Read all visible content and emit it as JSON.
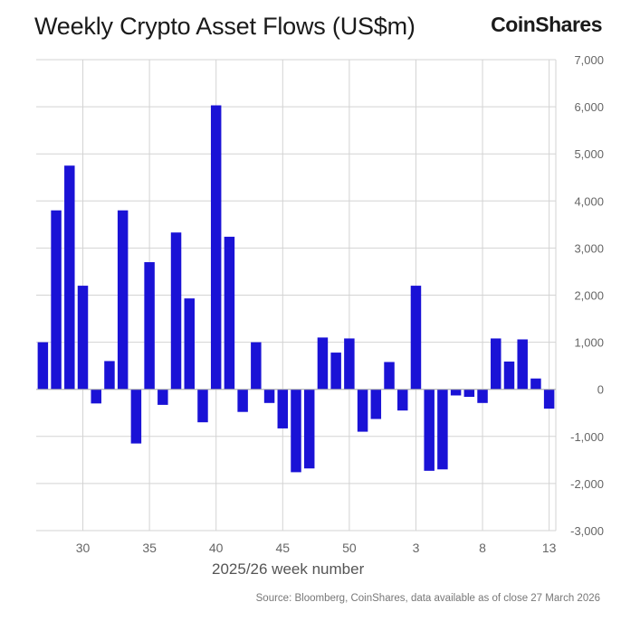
{
  "header": {
    "title": "Weekly Crypto Asset Flows (US$m)",
    "brand": "CoinShares"
  },
  "footer": {
    "source": "Source: Bloomberg, CoinShares, data available as of close 27 March 2026"
  },
  "colors": {
    "bar": "#1a12d6",
    "grid": "#d3d3d3",
    "axis_text": "#666666",
    "zero_line": "#b0b0b0"
  },
  "chart_data": {
    "type": "bar",
    "title": "Weekly Crypto Asset Flows (US$m)",
    "xlabel": "2025/26 week number",
    "ylabel": "",
    "ylim": [
      -3000,
      7000
    ],
    "yticks": [
      -3000,
      -2000,
      -1000,
      0,
      1000,
      2000,
      3000,
      4000,
      5000,
      6000,
      7000
    ],
    "ytick_labels": [
      "-3,000",
      "-2,000",
      "-1,000",
      "0",
      "1,000",
      "2,000",
      "3,000",
      "4,000",
      "5,000",
      "6,000",
      "7,000"
    ],
    "categories": [
      27,
      28,
      29,
      30,
      31,
      32,
      33,
      34,
      35,
      36,
      37,
      38,
      39,
      40,
      41,
      42,
      43,
      44,
      45,
      46,
      47,
      48,
      49,
      50,
      51,
      52,
      1,
      2,
      3,
      4,
      5,
      6,
      7,
      8,
      9,
      10,
      11,
      12,
      13
    ],
    "xtick_labels": [
      "30",
      "35",
      "40",
      "45",
      "50",
      "3",
      "8",
      "13"
    ],
    "xtick_weeks": [
      30,
      35,
      40,
      45,
      50,
      3,
      8,
      13
    ],
    "values": [
      1000,
      3800,
      4750,
      2200,
      -300,
      600,
      3800,
      -1150,
      2700,
      -330,
      3330,
      1930,
      -700,
      6030,
      3240,
      -480,
      1000,
      -290,
      -830,
      -1760,
      -1680,
      1100,
      780,
      1080,
      -900,
      -630,
      580,
      -450,
      2200,
      -1730,
      -1700,
      -130,
      -160,
      -290,
      1080,
      590,
      1060,
      230,
      -410
    ],
    "grid": true,
    "y_axis_position": "right"
  }
}
